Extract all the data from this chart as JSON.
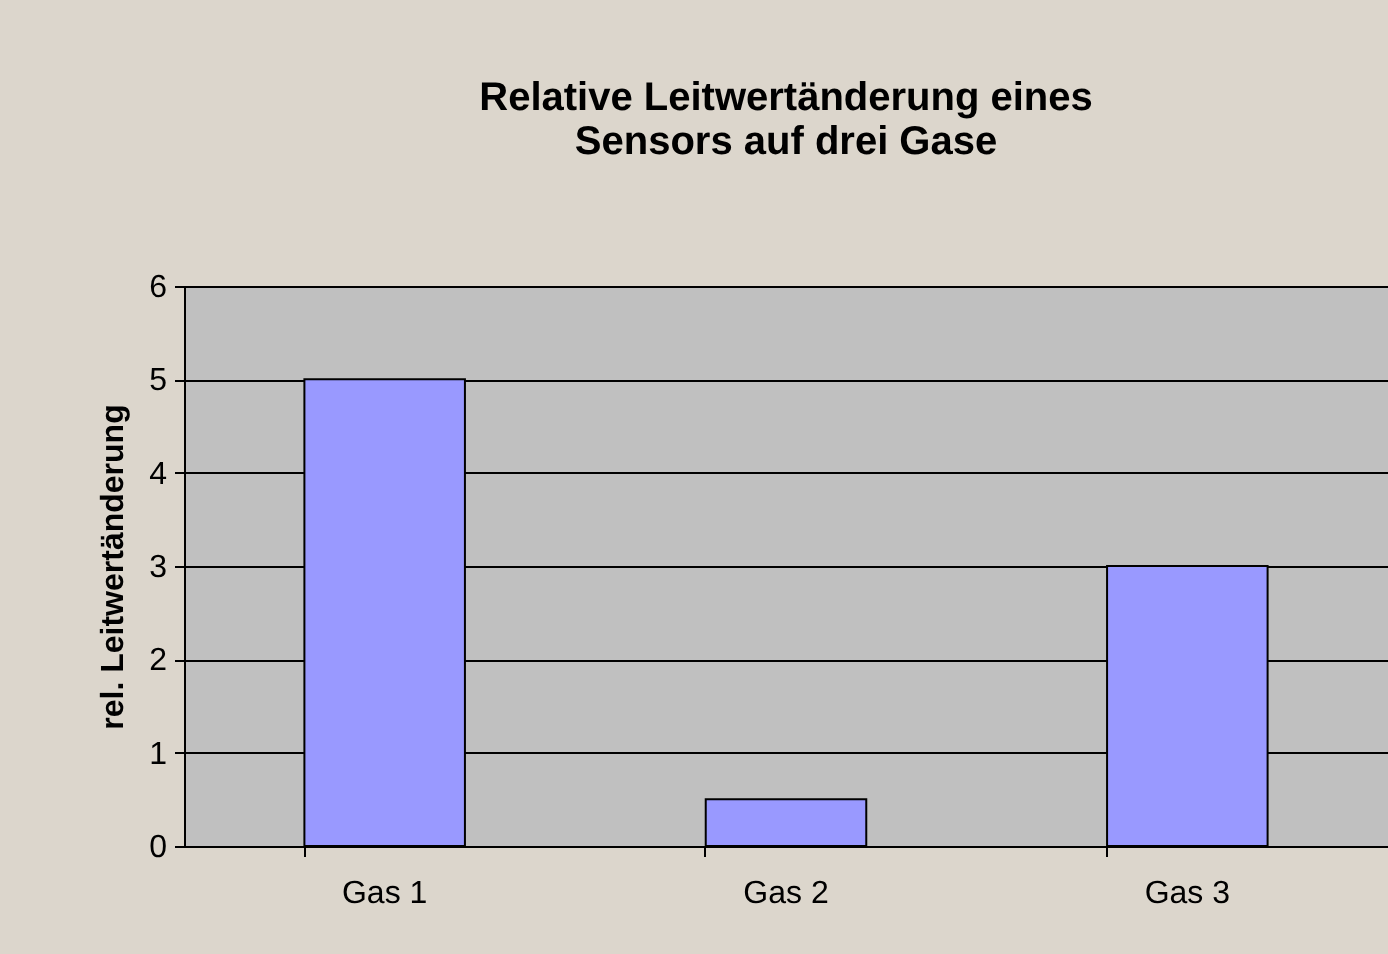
{
  "chart_data": {
    "type": "bar",
    "title": "Relative Leitwertänderung eines Sensors auf drei Gase",
    "ylabel": "rel. Leitwertänderung",
    "categories": [
      "Gas 1",
      "Gas 2",
      "Gas 3"
    ],
    "values": [
      5,
      0.5,
      3
    ],
    "color": "#9999ff",
    "ylim": [
      0,
      6
    ],
    "yticks": [
      0,
      1,
      2,
      3,
      4,
      5,
      6
    ],
    "grid": "y"
  }
}
